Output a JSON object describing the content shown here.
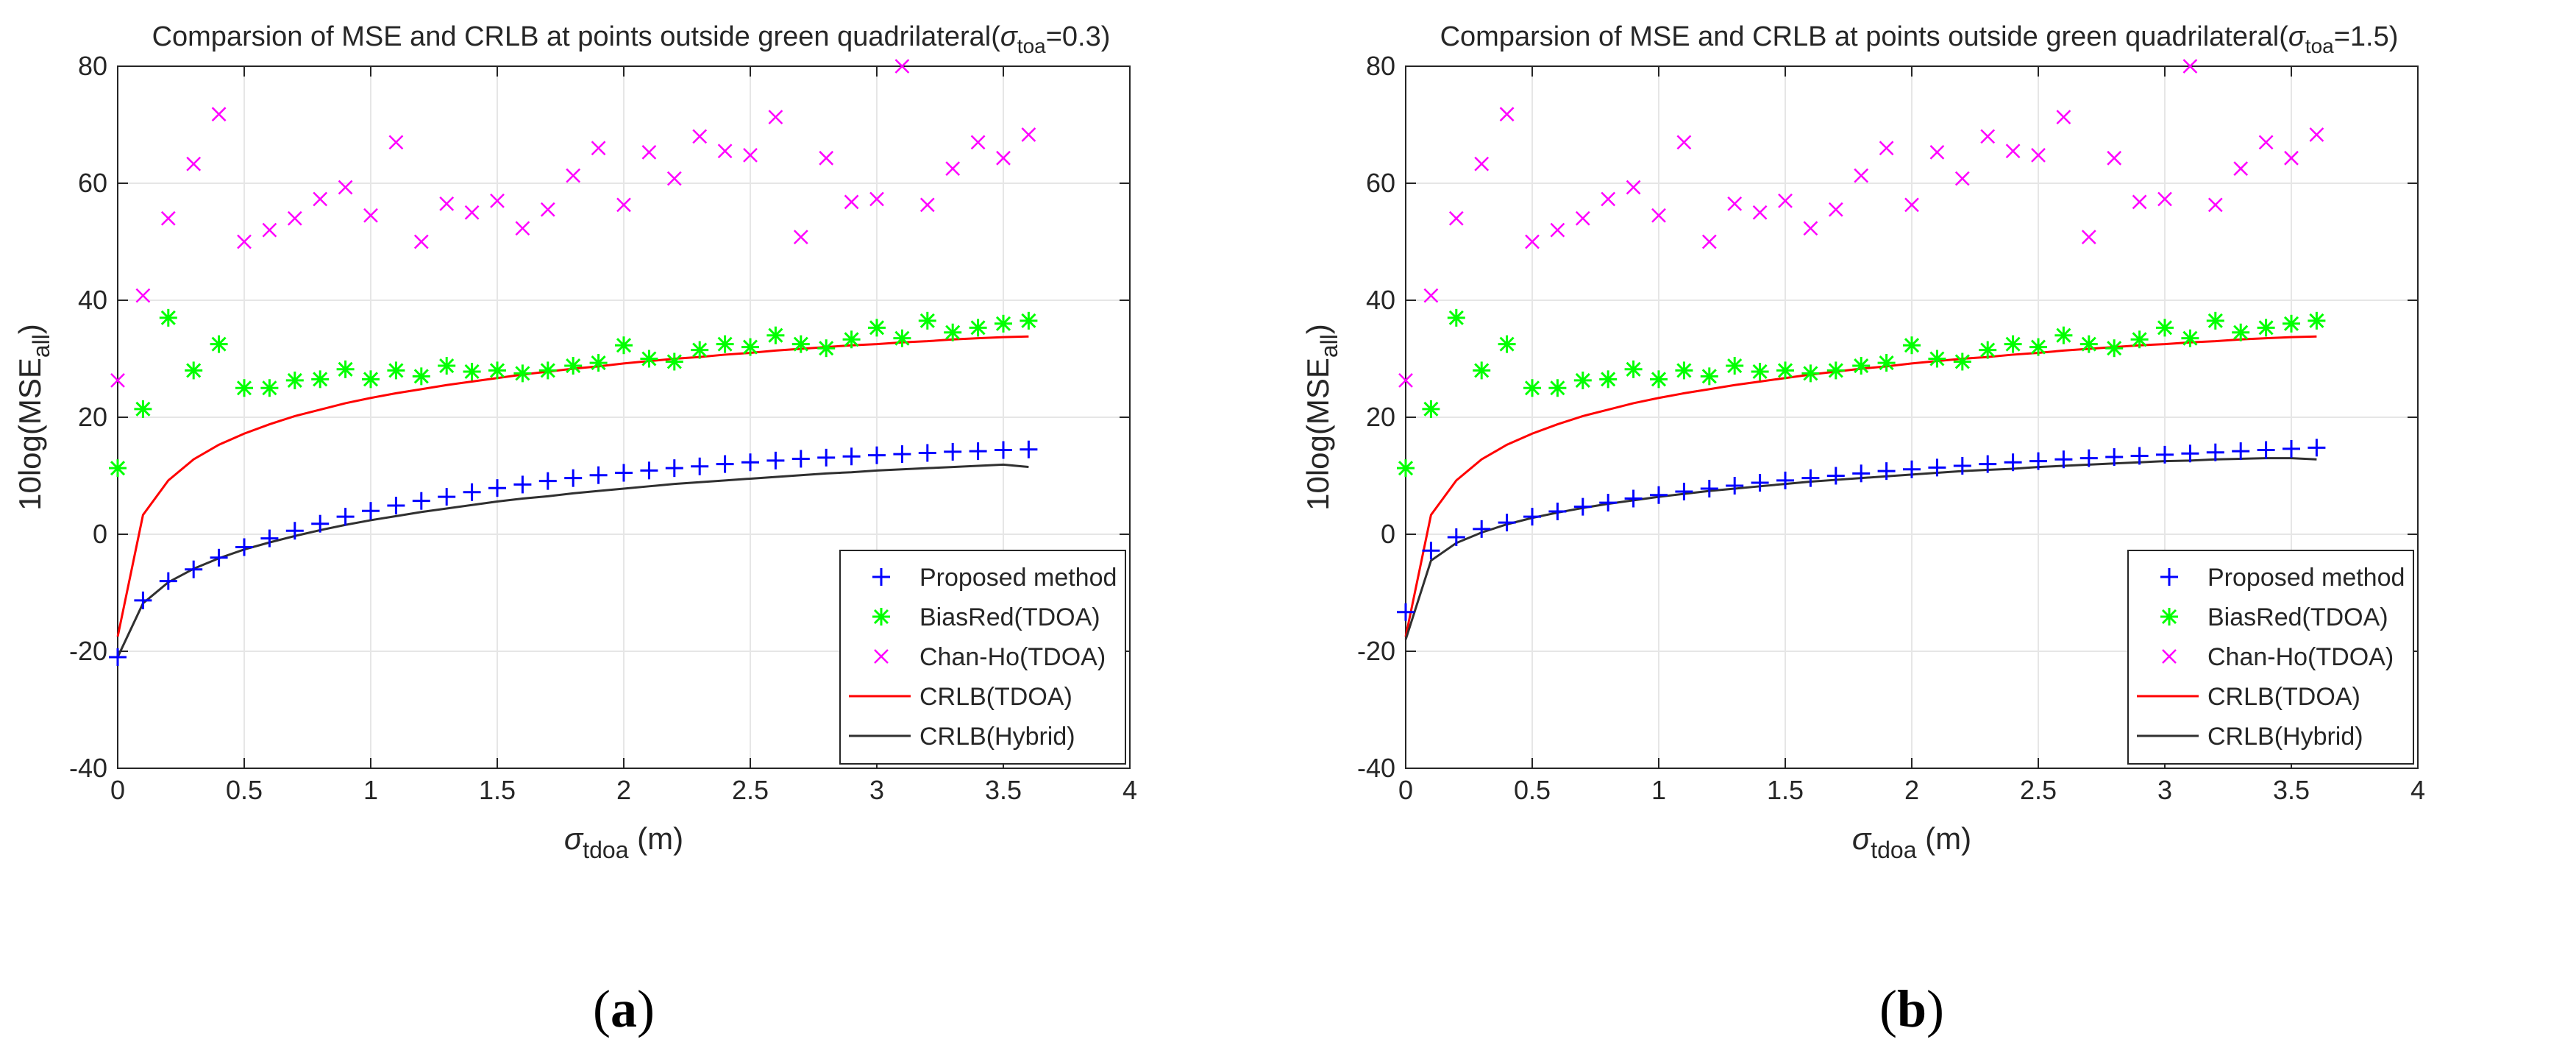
{
  "chart_data": [
    {
      "type": "scatter",
      "panel_label": "a",
      "title": "Comparsion of MSE and CRLB at points outside green quadrilateral(",
      "title_sigma": "σ",
      "title_sub": "toa",
      "title_value": "=0.3)",
      "xlabel_sym": "σ",
      "xlabel_sub": "tdoa",
      "xlabel_unit": " (m)",
      "ylabel_main": "10log(MSE",
      "ylabel_sub": "all",
      "ylabel_end": ")",
      "xlim": [
        0,
        4
      ],
      "ylim": [
        -40,
        80
      ],
      "xticks": [
        "0",
        "0.5",
        "1",
        "1.5",
        "2",
        "2.5",
        "3",
        "3.5",
        "4"
      ],
      "yticks": [
        "-40",
        "-20",
        "0",
        "20",
        "40",
        "60",
        "80"
      ],
      "grid": true,
      "legend_position": "bottom-right",
      "x": [
        0,
        0.1,
        0.2,
        0.3,
        0.4,
        0.5,
        0.6,
        0.7,
        0.8,
        0.9,
        1.0,
        1.1,
        1.2,
        1.3,
        1.4,
        1.5,
        1.6,
        1.7,
        1.8,
        1.9,
        2.0,
        2.1,
        2.2,
        2.3,
        2.4,
        2.5,
        2.6,
        2.7,
        2.8,
        2.9,
        3.0,
        3.1,
        3.2,
        3.3,
        3.4,
        3.5,
        3.6
      ],
      "series": [
        {
          "name": "Proposed method",
          "marker": "plus",
          "color": "#0000ff",
          "values": [
            -21,
            -11.3,
            -8,
            -6,
            -4,
            -2.2,
            -0.7,
            0.6,
            1.8,
            3.0,
            4.0,
            4.9,
            5.7,
            6.4,
            7.2,
            7.9,
            8.5,
            9.1,
            9.6,
            10.1,
            10.5,
            10.9,
            11.3,
            11.6,
            12.0,
            12.3,
            12.6,
            12.9,
            13.1,
            13.3,
            13.5,
            13.7,
            13.9,
            14.1,
            14.2,
            14.4,
            14.5
          ]
        },
        {
          "name": "BiasRed(TDOA)",
          "marker": "star",
          "color": "#00ff00",
          "values": [
            11.3,
            21.4,
            37,
            28,
            32.5,
            25,
            25,
            26.3,
            26.5,
            28.2,
            26.5,
            28,
            27,
            28.8,
            27.8,
            28,
            27.5,
            28,
            28.8,
            29.3,
            32.3,
            30,
            29.5,
            31.5,
            32.5,
            32,
            34,
            32.5,
            31.8,
            33.3,
            35.3,
            33.5,
            36.5,
            34.5,
            35.3,
            36,
            36.5
          ]
        },
        {
          "name": "Chan-Ho(TDOA)",
          "marker": "cross",
          "color": "#ff00ff",
          "values": [
            26.3,
            40.8,
            54,
            63.3,
            71.8,
            50,
            52,
            54,
            57.3,
            59.3,
            54.5,
            67,
            50,
            56.5,
            55,
            57,
            52.3,
            55.5,
            61.3,
            66,
            56.3,
            65.3,
            60.8,
            68,
            65.5,
            64.8,
            71.3,
            50.8,
            64.3,
            56.8,
            57.3,
            80,
            56.3,
            62.5,
            67,
            64.3,
            68.3
          ]
        },
        {
          "name": "CRLB(TDOA)",
          "marker": "line",
          "color": "#ff0000",
          "values": [
            -17.5,
            3.3,
            9.2,
            12.8,
            15.3,
            17.2,
            18.8,
            20.2,
            21.3,
            22.4,
            23.3,
            24.1,
            24.8,
            25.5,
            26.1,
            26.7,
            27.3,
            27.8,
            28.3,
            28.7,
            29.2,
            29.6,
            30.0,
            30.3,
            30.7,
            31.0,
            31.4,
            31.7,
            32.0,
            32.3,
            32.5,
            32.8,
            33.0,
            33.3,
            33.5,
            33.7,
            33.8
          ]
        },
        {
          "name": "CRLB(Hybrid)",
          "marker": "line",
          "color": "#303030",
          "values": [
            -21,
            -11.8,
            -8.2,
            -5.9,
            -4.1,
            -2.6,
            -1.4,
            -0.3,
            0.7,
            1.6,
            2.4,
            3.1,
            3.8,
            4.4,
            5.0,
            5.6,
            6.1,
            6.5,
            7.0,
            7.4,
            7.8,
            8.2,
            8.6,
            8.9,
            9.2,
            9.5,
            9.8,
            10.1,
            10.4,
            10.6,
            10.9,
            11.1,
            11.3,
            11.5,
            11.7,
            11.9,
            11.5
          ]
        }
      ]
    },
    {
      "type": "scatter",
      "panel_label": "b",
      "title": "Comparsion of MSE and CRLB at points outside green quadrilateral(",
      "title_sigma": "σ",
      "title_sub": "toa",
      "title_value": "=1.5)",
      "xlabel_sym": "σ",
      "xlabel_sub": "tdoa",
      "xlabel_unit": " (m)",
      "ylabel_main": "10log(MSE",
      "ylabel_sub": "all",
      "ylabel_end": ")",
      "xlim": [
        0,
        4
      ],
      "ylim": [
        -40,
        80
      ],
      "xticks": [
        "0",
        "0.5",
        "1",
        "1.5",
        "2",
        "2.5",
        "3",
        "3.5",
        "4"
      ],
      "yticks": [
        "-40",
        "-20",
        "0",
        "20",
        "40",
        "60",
        "80"
      ],
      "grid": true,
      "legend_position": "bottom-right",
      "x": [
        0,
        0.1,
        0.2,
        0.3,
        0.4,
        0.5,
        0.6,
        0.7,
        0.8,
        0.9,
        1.0,
        1.1,
        1.2,
        1.3,
        1.4,
        1.5,
        1.6,
        1.7,
        1.8,
        1.9,
        2.0,
        2.1,
        2.2,
        2.3,
        2.4,
        2.5,
        2.6,
        2.7,
        2.8,
        2.9,
        3.0,
        3.1,
        3.2,
        3.3,
        3.4,
        3.5,
        3.6
      ],
      "series": [
        {
          "name": "Proposed method",
          "marker": "plus",
          "color": "#0000ff",
          "values": [
            -13.3,
            -2.8,
            -0.5,
            0.9,
            2.0,
            3.0,
            3.9,
            4.7,
            5.4,
            6.1,
            6.7,
            7.3,
            7.8,
            8.3,
            8.8,
            9.2,
            9.6,
            10.0,
            10.4,
            10.8,
            11.1,
            11.4,
            11.7,
            12.0,
            12.3,
            12.5,
            12.8,
            13.0,
            13.2,
            13.4,
            13.6,
            13.8,
            14.0,
            14.2,
            14.4,
            14.6,
            14.8
          ]
        },
        {
          "name": "BiasRed(TDOA)",
          "marker": "star",
          "color": "#00ff00",
          "values": [
            11.3,
            21.4,
            37,
            28,
            32.5,
            25,
            25,
            26.3,
            26.5,
            28.2,
            26.5,
            28,
            27,
            28.8,
            27.8,
            28,
            27.5,
            28,
            28.8,
            29.3,
            32.3,
            30,
            29.5,
            31.5,
            32.5,
            32,
            34,
            32.5,
            31.8,
            33.3,
            35.3,
            33.5,
            36.5,
            34.5,
            35.3,
            36,
            36.5
          ]
        },
        {
          "name": "Chan-Ho(TDOA)",
          "marker": "cross",
          "color": "#ff00ff",
          "values": [
            26.3,
            40.8,
            54,
            63.3,
            71.8,
            50,
            52,
            54,
            57.3,
            59.3,
            54.5,
            67,
            50,
            56.5,
            55,
            57,
            52.3,
            55.5,
            61.3,
            66,
            56.3,
            65.3,
            60.8,
            68,
            65.5,
            64.8,
            71.3,
            50.8,
            64.3,
            56.8,
            57.3,
            80,
            56.3,
            62.5,
            67,
            64.3,
            68.3
          ]
        },
        {
          "name": "CRLB(TDOA)",
          "marker": "line",
          "color": "#ff0000",
          "values": [
            -17.5,
            3.3,
            9.2,
            12.8,
            15.3,
            17.2,
            18.8,
            20.2,
            21.3,
            22.4,
            23.3,
            24.1,
            24.8,
            25.5,
            26.1,
            26.7,
            27.3,
            27.8,
            28.3,
            28.7,
            29.2,
            29.6,
            30.0,
            30.3,
            30.7,
            31.0,
            31.4,
            31.7,
            32.0,
            32.3,
            32.5,
            32.8,
            33.0,
            33.3,
            33.5,
            33.7,
            33.8
          ]
        },
        {
          "name": "CRLB(Hybrid)",
          "marker": "line",
          "color": "#303030",
          "values": [
            -18,
            -4.5,
            -1.5,
            0.3,
            1.7,
            2.8,
            3.7,
            4.5,
            5.2,
            5.8,
            6.4,
            6.9,
            7.4,
            7.8,
            8.2,
            8.6,
            9.0,
            9.3,
            9.6,
            9.9,
            10.2,
            10.5,
            10.8,
            11.0,
            11.2,
            11.5,
            11.7,
            11.9,
            12.1,
            12.3,
            12.5,
            12.6,
            12.8,
            12.9,
            13.0,
            13.0,
            12.8
          ]
        }
      ]
    }
  ]
}
